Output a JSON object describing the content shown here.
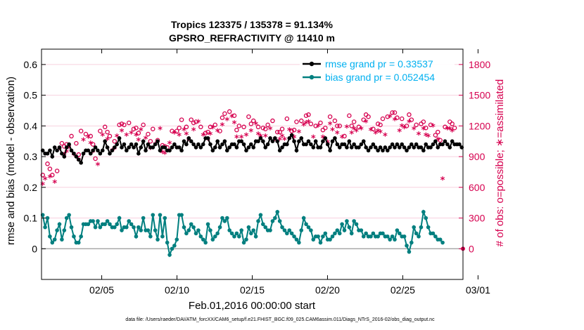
{
  "chart_data": {
    "type": "line",
    "title_line1": "Tropics 123375 / 135378 = 91.134%",
    "title_line2": "GPSRO_REFRACTIVITY @ 11410 m",
    "xlabel": "Feb.01,2016 00:00:00 start",
    "ylabel_left": "rmse and bias (model - observation)",
    "ylabel_right": "# of obs: o=possible; ∗=assimilated",
    "x_ticks": [
      "02/05",
      "02/10",
      "02/15",
      "02/20",
      "02/25",
      "03/01"
    ],
    "y_left_ticks": [
      "0",
      "0.1",
      "0.2",
      "0.3",
      "0.4",
      "0.5",
      "0.6"
    ],
    "y_right_ticks": [
      "0",
      "300",
      "600",
      "900",
      "1200",
      "1500",
      "1800"
    ],
    "xlim_days": [
      0,
      28
    ],
    "ylim_left": [
      -0.1,
      0.65
    ],
    "ylim_right": [
      -300,
      1950
    ],
    "footer": "data file: /Users/raeder/DAI/ATM_forcXX/CAM6_setup/f.e21.FHIST_BGC.f09_025.CAM6assim.011/Diags_NTrS_2016-02/obs_diag_output.nc",
    "colors": {
      "rmse": "#000000",
      "bias": "#007f7f",
      "obs": "#d6004f",
      "legend_rmse_text": "#00b0f0",
      "legend_bias_text": "#00b0f0",
      "zero_line": "#aaaaaa"
    },
    "series": [
      {
        "name": "rmse grand pr = 0.33537",
        "values": [
          0.32,
          0.31,
          0.31,
          0.32,
          0.3,
          0.33,
          0.32,
          0.33,
          0.31,
          0.3,
          0.33,
          0.34,
          0.32,
          0.31,
          0.3,
          0.29,
          0.28,
          0.31,
          0.32,
          0.32,
          0.31,
          0.32,
          0.33,
          0.32,
          0.31,
          0.32,
          0.35,
          0.33,
          0.31,
          0.32,
          0.33,
          0.34,
          0.36,
          0.33,
          0.34,
          0.32,
          0.33,
          0.34,
          0.33,
          0.34,
          0.31,
          0.33,
          0.35,
          0.32,
          0.34,
          0.33,
          0.33,
          0.34,
          0.35,
          0.32,
          0.33,
          0.33,
          0.32,
          0.32,
          0.33,
          0.34,
          0.33,
          0.33,
          0.32,
          0.35,
          0.34,
          0.36,
          0.35,
          0.34,
          0.33,
          0.34,
          0.33,
          0.34,
          0.36,
          0.36,
          0.34,
          0.32,
          0.33,
          0.35,
          0.33,
          0.34,
          0.35,
          0.32,
          0.33,
          0.34,
          0.34,
          0.33,
          0.35,
          0.35,
          0.34,
          0.32,
          0.33,
          0.34,
          0.33,
          0.35,
          0.35,
          0.36,
          0.35,
          0.33,
          0.34,
          0.36,
          0.35,
          0.36,
          0.35,
          0.32,
          0.33,
          0.34,
          0.34,
          0.36,
          0.37,
          0.35,
          0.32,
          0.35,
          0.36,
          0.34,
          0.34,
          0.35,
          0.34,
          0.33,
          0.35,
          0.33,
          0.33,
          0.35,
          0.36,
          0.34,
          0.32,
          0.35,
          0.36,
          0.34,
          0.33,
          0.34,
          0.34,
          0.33,
          0.35,
          0.33,
          0.34,
          0.33,
          0.33,
          0.34,
          0.35,
          0.33,
          0.32,
          0.33,
          0.34,
          0.33,
          0.32,
          0.33,
          0.32,
          0.33,
          0.32,
          0.33,
          0.34,
          0.33,
          0.34,
          0.33,
          0.34,
          0.33,
          0.32,
          0.33,
          0.34,
          0.33,
          0.34,
          0.33,
          0.33,
          0.32,
          0.34,
          0.33,
          0.33,
          0.34,
          0.35,
          0.33,
          0.34,
          0.34,
          0.35,
          0.34,
          0.33,
          0.35,
          0.34,
          0.34,
          0.34,
          0.33
        ]
      },
      {
        "name": "bias grand pr = 0.052454",
        "values": [
          0.11,
          0.07,
          0.1,
          0.04,
          0.02,
          0.03,
          0.06,
          0.08,
          0.03,
          0.06,
          0.1,
          0.11,
          0.07,
          0.04,
          0.02,
          0.02,
          0.04,
          0.08,
          0.08,
          0.08,
          0.09,
          0.09,
          0.07,
          0.09,
          0.07,
          0.08,
          0.08,
          0.09,
          0.08,
          0.07,
          0.07,
          0.08,
          0.1,
          0.06,
          0.07,
          0.07,
          0.09,
          0.08,
          0.07,
          0.04,
          0.07,
          0.06,
          0.1,
          0.06,
          0.06,
          0.04,
          0.11,
          0.06,
          0.03,
          0.11,
          0.04,
          0.1,
          0.02,
          -0.02,
          0.0,
          0.01,
          0.03,
          0.11,
          0.11,
          0.07,
          0.05,
          0.06,
          0.08,
          0.07,
          0.05,
          0.06,
          0.04,
          0.03,
          0.02,
          0.08,
          0.06,
          0.03,
          0.04,
          0.05,
          0.07,
          0.1,
          0.09,
          0.1,
          0.06,
          0.05,
          0.04,
          0.05,
          0.04,
          0.06,
          0.02,
          0.03,
          0.07,
          0.05,
          0.06,
          0.04,
          0.09,
          0.11,
          0.08,
          0.07,
          0.06,
          0.06,
          0.09,
          0.1,
          0.12,
          0.09,
          0.07,
          0.06,
          0.05,
          0.06,
          0.05,
          0.04,
          0.03,
          0.02,
          0.06,
          0.1,
          0.08,
          0.07,
          0.06,
          0.03,
          0.04,
          0.04,
          0.02,
          0.04,
          0.05,
          0.03,
          0.03,
          0.04,
          0.05,
          0.06,
          0.05,
          0.08,
          0.06,
          0.09,
          0.07,
          0.05,
          0.09,
          0.08,
          0.06,
          0.06,
          0.04,
          0.05,
          0.04,
          0.04,
          0.05,
          0.04,
          0.04,
          0.05,
          0.05,
          0.04,
          0.04,
          0.03,
          0.04,
          0.03,
          0.06,
          0.05,
          0.04,
          0.04,
          0.01,
          -0.01,
          0.02,
          0.07,
          0.05,
          0.04,
          0.07,
          0.12,
          0.1,
          0.07,
          0.05,
          0.05,
          0.04,
          0.03,
          0.03,
          0.02
        ]
      },
      {
        "name": "obs possible",
        "values": [
          720,
          760,
          830,
          780,
          720,
          700,
          760,
          1050,
          1030,
          1000,
          1020,
          1060,
          1100,
          980,
          1030,
          920,
          1150,
          1130,
          1120,
          1160,
          1100,
          1020,
          880,
          880,
          1150,
          1180,
          1190,
          1140,
          1100,
          1030,
          1050,
          1170,
          1210,
          1220,
          1210,
          1180,
          1230,
          1200,
          1170,
          1180,
          1130,
          1230,
          1210,
          1150,
          1120,
          1050,
          1170,
          1090,
          1060,
          1240,
          1010,
          1000,
          990,
          1100,
          1150,
          1200,
          1150,
          1180,
          1260,
          1230,
          1190,
          1140,
          1260,
          1230,
          1240,
          1310,
          1190,
          1180,
          1130,
          1140,
          1190,
          1250,
          1210,
          1220,
          1150,
          1280,
          1320,
          1330,
          1340,
          1360,
          1300,
          1160,
          1200,
          1160,
          1190,
          1180,
          1290,
          1220,
          1250,
          1290,
          1190,
          1170,
          1180,
          1170,
          1210,
          1240,
          1250,
          1140,
          1140,
          1140,
          1170,
          1140,
          1270,
          1230,
          1150,
          1160,
          1240,
          1210,
          1250,
          1280,
          1300,
          1310,
          1220,
          1160,
          1200,
          1270,
          1230,
          1160,
          1180,
          1110,
          1290,
          1230,
          1250,
          1200,
          1200,
          1160,
          1100,
          1260,
          1300,
          1200,
          1240,
          1220,
          1190,
          1240,
          1260,
          1310,
          1290,
          1230,
          1170,
          1200,
          1220,
          1210,
          1270,
          1180,
          1290,
          1360,
          1330,
          1330,
          1280,
          1220,
          1270,
          1250,
          1200,
          1310,
          1260,
          1240,
          1210,
          1190,
          1220,
          1240,
          1180,
          1170,
          1210,
          1270,
          1110,
          1140,
          1060,
          800,
          1190,
          1240,
          1240,
          1220,
          1180
        ]
      },
      {
        "name": "obs assimilated",
        "values": [
          630,
          680,
          750,
          700,
          660,
          650,
          700,
          980,
          960,
          920,
          950,
          990,
          1030,
          920,
          960,
          870,
          1080,
          1060,
          1050,
          1090,
          1030,
          950,
          820,
          820,
          1080,
          1110,
          1120,
          1070,
          1030,
          960,
          980,
          1100,
          1140,
          1150,
          1140,
          1110,
          1160,
          1130,
          1100,
          1110,
          1060,
          1160,
          1140,
          1080,
          1050,
          980,
          1100,
          1020,
          990,
          1170,
          940,
          930,
          920,
          1030,
          1080,
          1130,
          1080,
          1110,
          1190,
          1160,
          1120,
          1070,
          1190,
          1160,
          1170,
          1240,
          1120,
          1110,
          1060,
          1070,
          1120,
          1180,
          1140,
          1150,
          1080,
          1210,
          1250,
          1260,
          1270,
          1290,
          1230,
          1090,
          1130,
          1090,
          1120,
          1110,
          1220,
          1150,
          1180,
          1220,
          1120,
          1100,
          1110,
          1100,
          1140,
          1170,
          1180,
          1070,
          1070,
          1070,
          1100,
          1070,
          1200,
          1160,
          1080,
          1090,
          1170,
          1140,
          1180,
          1210,
          1230,
          1240,
          1150,
          1090,
          1130,
          1200,
          1160,
          1090,
          1110,
          1040,
          1220,
          1160,
          1180,
          1130,
          1130,
          1090,
          1030,
          1190,
          1230,
          1130,
          1170,
          1150,
          1120,
          1170,
          1190,
          1240,
          1220,
          1160,
          1100,
          1130,
          1150,
          1140,
          1200,
          1110,
          1220,
          1290,
          1260,
          1260,
          1210,
          1150,
          1200,
          1180,
          1130,
          1240,
          1190,
          1170,
          1140,
          1120,
          1150,
          1170,
          1110,
          1100,
          1140,
          1200,
          1040,
          1070,
          990,
          680,
          1110,
          1170,
          1170,
          1150,
          1110
        ]
      }
    ]
  }
}
